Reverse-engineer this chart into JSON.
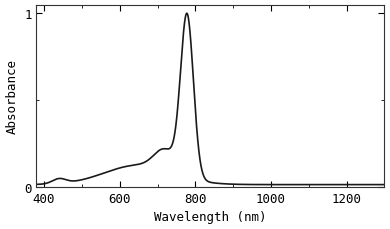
{
  "title": "",
  "xlabel": "Wavelength (nm)",
  "ylabel": "Absorbance",
  "xlim": [
    380,
    1300
  ],
  "ylim": [
    0,
    1.05
  ],
  "xticks": [
    400,
    600,
    800,
    1000,
    1200
  ],
  "yticks": [
    0,
    1
  ],
  "peak_wavelength": 778,
  "line_color": "#1a1a1a",
  "line_width": 1.2,
  "background_color": "#ffffff",
  "font_family": "monospace",
  "font_size": 9
}
